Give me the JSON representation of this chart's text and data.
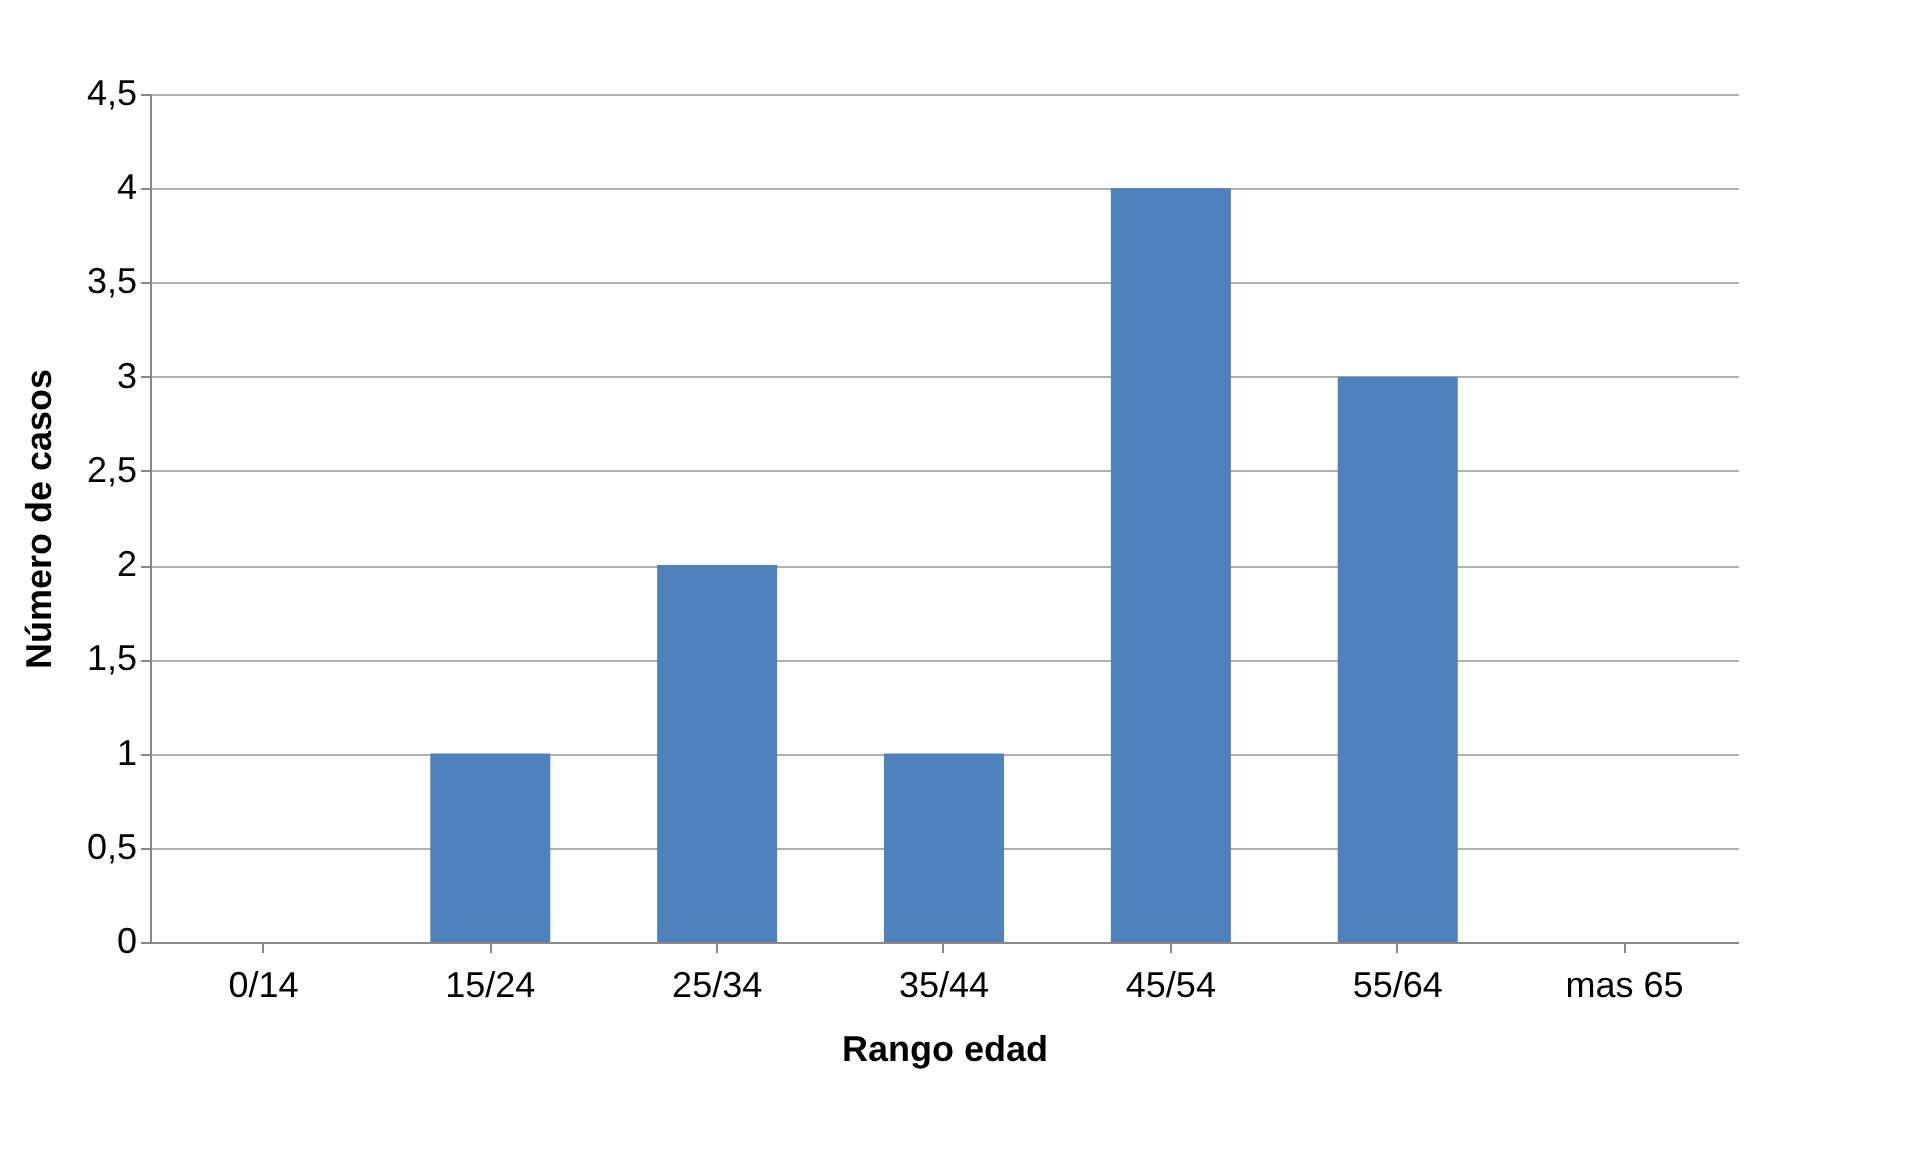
{
  "chart_data": {
    "type": "bar",
    "xlabel": "Rango edad",
    "ylabel": "Número de casos",
    "categories": [
      "0/14",
      "15/24",
      "25/34",
      "35/44",
      "45/54",
      "55/64",
      "mas 65"
    ],
    "values": [
      0,
      1,
      2,
      1,
      4,
      3,
      0
    ],
    "color": "#4f81bd",
    "ylim": [
      0,
      4.5
    ],
    "yticks": [
      0,
      {
        "value": 0.5,
        "label": "0,5"
      },
      1,
      {
        "value": 1.5,
        "label": "1,5"
      },
      2,
      {
        "value": 2.5,
        "label": "2,5"
      },
      3,
      {
        "value": 3.5,
        "label": "3,5"
      },
      4,
      {
        "value": 4.5,
        "label": "4,5"
      }
    ],
    "grid": "y"
  }
}
